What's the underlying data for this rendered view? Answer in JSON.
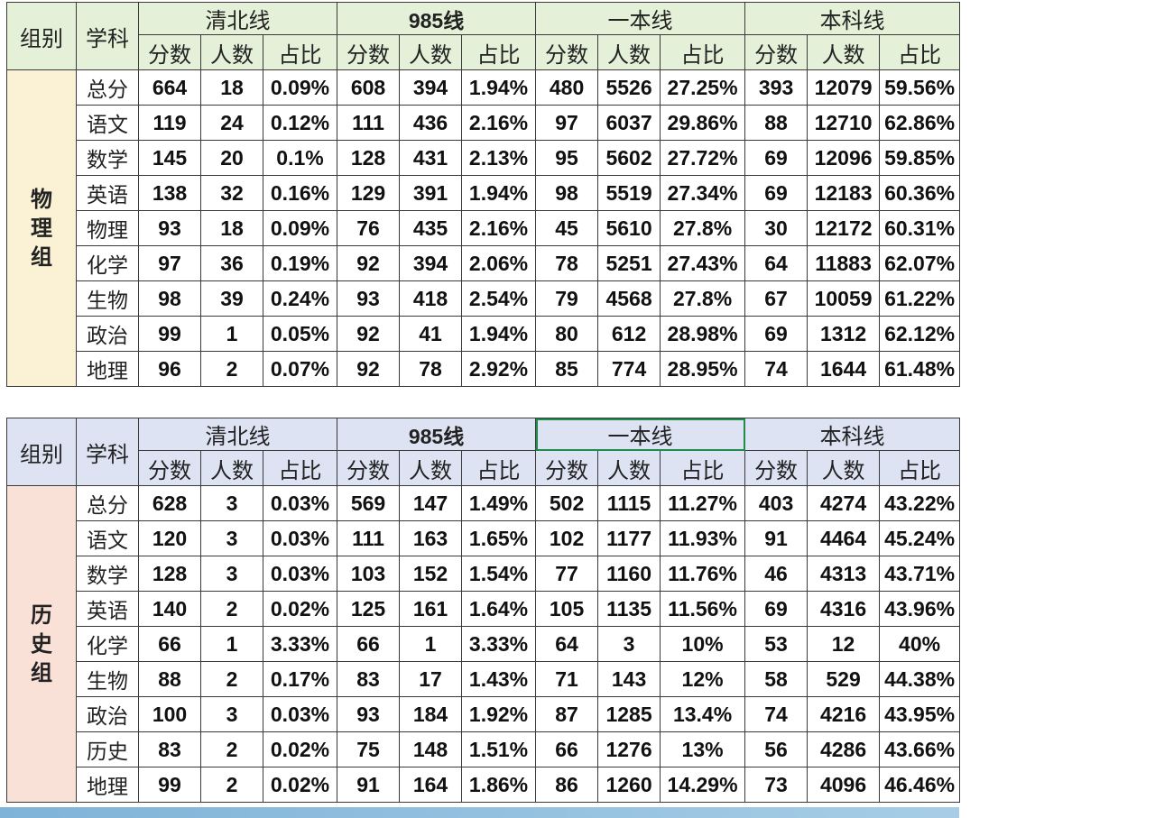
{
  "headers": {
    "group": "组别",
    "subject": "学科",
    "lines": [
      "清北线",
      "985线",
      "一本线",
      "本科线"
    ],
    "sub": [
      "分数",
      "人数",
      "占比"
    ]
  },
  "tables": [
    {
      "group_label": "物理组",
      "rows": [
        {
          "subject": "总分",
          "values": [
            "664",
            "18",
            "0.09%",
            "608",
            "394",
            "1.94%",
            "480",
            "5526",
            "27.25%",
            "393",
            "12079",
            "59.56%"
          ]
        },
        {
          "subject": "语文",
          "values": [
            "119",
            "24",
            "0.12%",
            "111",
            "436",
            "2.16%",
            "97",
            "6037",
            "29.86%",
            "88",
            "12710",
            "62.86%"
          ]
        },
        {
          "subject": "数学",
          "values": [
            "145",
            "20",
            "0.1%",
            "128",
            "431",
            "2.13%",
            "95",
            "5602",
            "27.72%",
            "69",
            "12096",
            "59.85%"
          ]
        },
        {
          "subject": "英语",
          "values": [
            "138",
            "32",
            "0.16%",
            "129",
            "391",
            "1.94%",
            "98",
            "5519",
            "27.34%",
            "69",
            "12183",
            "60.36%"
          ]
        },
        {
          "subject": "物理",
          "values": [
            "93",
            "18",
            "0.09%",
            "76",
            "435",
            "2.16%",
            "45",
            "5610",
            "27.8%",
            "30",
            "12172",
            "60.31%"
          ]
        },
        {
          "subject": "化学",
          "values": [
            "97",
            "36",
            "0.19%",
            "92",
            "394",
            "2.06%",
            "78",
            "5251",
            "27.43%",
            "64",
            "11883",
            "62.07%"
          ]
        },
        {
          "subject": "生物",
          "values": [
            "98",
            "39",
            "0.24%",
            "93",
            "418",
            "2.54%",
            "79",
            "4568",
            "27.8%",
            "67",
            "10059",
            "61.22%"
          ]
        },
        {
          "subject": "政治",
          "values": [
            "99",
            "1",
            "0.05%",
            "92",
            "41",
            "1.94%",
            "80",
            "612",
            "28.98%",
            "69",
            "1312",
            "62.12%"
          ]
        },
        {
          "subject": "地理",
          "values": [
            "96",
            "2",
            "0.07%",
            "92",
            "78",
            "2.92%",
            "85",
            "774",
            "28.95%",
            "74",
            "1644",
            "61.48%"
          ]
        }
      ]
    },
    {
      "group_label": "历史组",
      "rows": [
        {
          "subject": "总分",
          "values": [
            "628",
            "3",
            "0.03%",
            "569",
            "147",
            "1.49%",
            "502",
            "1115",
            "11.27%",
            "403",
            "4274",
            "43.22%"
          ]
        },
        {
          "subject": "语文",
          "values": [
            "120",
            "3",
            "0.03%",
            "111",
            "163",
            "1.65%",
            "102",
            "1177",
            "11.93%",
            "91",
            "4464",
            "45.24%"
          ]
        },
        {
          "subject": "数学",
          "values": [
            "128",
            "3",
            "0.03%",
            "103",
            "152",
            "1.54%",
            "77",
            "1160",
            "11.76%",
            "46",
            "4313",
            "43.71%"
          ]
        },
        {
          "subject": "英语",
          "values": [
            "140",
            "2",
            "0.02%",
            "125",
            "161",
            "1.64%",
            "105",
            "1135",
            "11.56%",
            "69",
            "4316",
            "43.96%"
          ]
        },
        {
          "subject": "化学",
          "values": [
            "66",
            "1",
            "3.33%",
            "66",
            "1",
            "3.33%",
            "64",
            "3",
            "10%",
            "53",
            "12",
            "40%"
          ]
        },
        {
          "subject": "生物",
          "values": [
            "88",
            "2",
            "0.17%",
            "83",
            "17",
            "1.43%",
            "71",
            "143",
            "12%",
            "58",
            "529",
            "44.38%"
          ]
        },
        {
          "subject": "政治",
          "values": [
            "100",
            "3",
            "0.03%",
            "93",
            "184",
            "1.92%",
            "87",
            "1285",
            "13.4%",
            "74",
            "4216",
            "43.95%"
          ]
        },
        {
          "subject": "历史",
          "values": [
            "83",
            "2",
            "0.02%",
            "75",
            "148",
            "1.51%",
            "66",
            "1276",
            "13%",
            "56",
            "4286",
            "43.66%"
          ]
        },
        {
          "subject": "地理",
          "values": [
            "99",
            "2",
            "0.02%",
            "91",
            "164",
            "1.86%",
            "86",
            "1260",
            "14.29%",
            "73",
            "4096",
            "46.46%"
          ]
        }
      ]
    }
  ],
  "colors": {
    "physics_header_bg": "#e4f1d8",
    "history_header_bg": "#dde3f2",
    "physics_group_bg": "#fbf2d6",
    "history_group_bg": "#f9e1d8",
    "selection_border": "#1e8a4c"
  }
}
